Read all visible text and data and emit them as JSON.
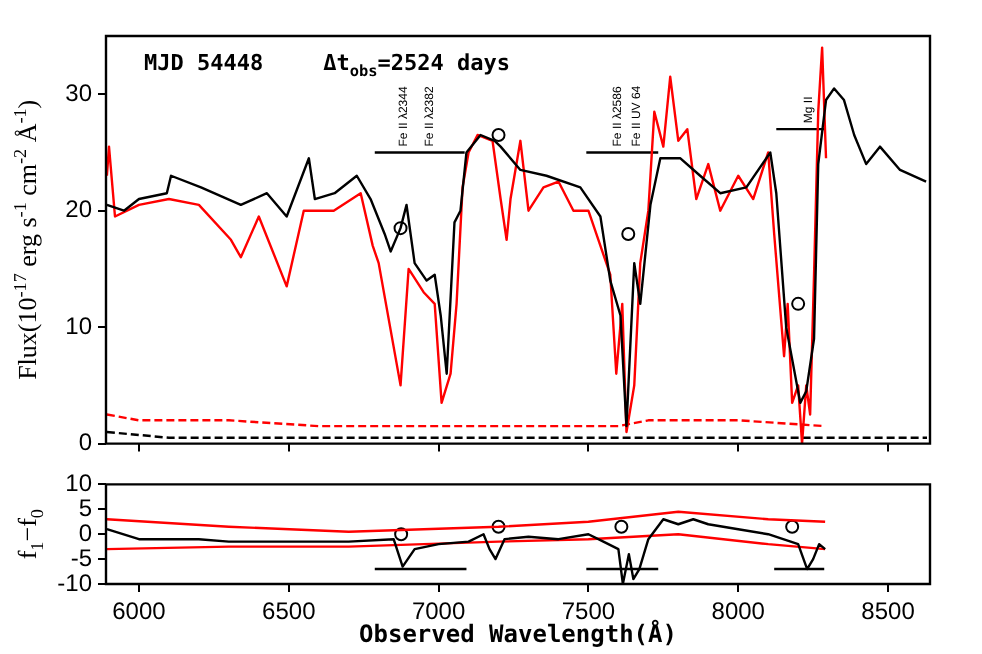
{
  "chart_data": [
    {
      "type": "line",
      "ylabel": "Flux(10$^{-17}$ erg s$^{-1}$ cm$^{-2}$ Å$^{-1}$)",
      "xlim": [
        5890,
        8640
      ],
      "ylim": [
        0,
        35
      ],
      "xticks": [
        {
          "value": 6000,
          "label": null
        },
        {
          "value": 6500,
          "label": null
        },
        {
          "value": 7000,
          "label": null
        },
        {
          "value": 7500,
          "label": null
        },
        {
          "value": 8000,
          "label": null
        },
        {
          "value": 8500,
          "label": null
        }
      ],
      "yticks": [
        0,
        10,
        20,
        30
      ],
      "tick_labels": "y",
      "grid": false,
      "legend": false,
      "annotations": [
        "MJD 54448",
        "Δt$_{obs}$=2524 days",
        {
          "text": "Fe II λ2344",
          "x": 6873,
          "y": 25
        },
        {
          "text": "Fe II λ2382",
          "x": 6960,
          "y": 25
        },
        {
          "text": "Fe II λ2586",
          "x": 7590,
          "y": 25
        },
        {
          "text": "Fe II UV 64",
          "x": 7653,
          "y": 25
        },
        {
          "text": "Mg II",
          "x": 8227,
          "y": 27
        }
      ],
      "series": [
        {
          "color": "#000000",
          "line_style": "solid",
          "x": [
            5893,
            5950,
            6000,
            6093,
            6107,
            6207,
            6340,
            6427,
            6493,
            6567,
            6587,
            6653,
            6727,
            6773,
            6820,
            6840,
            6873,
            6893,
            6920,
            6960,
            6987,
            7007,
            7027,
            7053,
            7073,
            7093,
            7140,
            7187,
            7207,
            7273,
            7360,
            7473,
            7540,
            7573,
            7607,
            7627,
            7653,
            7673,
            7707,
            7740,
            7807,
            7873,
            7940,
            8027,
            8107,
            8127,
            8160,
            8207,
            8227,
            8253,
            8267,
            8293,
            8320,
            8353,
            8387,
            8427,
            8473,
            8540,
            8627
          ],
          "values": [
            20.5,
            20,
            21,
            21.5,
            23,
            22,
            20.5,
            21.5,
            19.5,
            24.5,
            21,
            21.5,
            23,
            21,
            18,
            16.5,
            18.5,
            20.5,
            15.5,
            14,
            14.5,
            11,
            6,
            19,
            20,
            25,
            26.5,
            26,
            25.5,
            23.5,
            23,
            22,
            19.5,
            14,
            11,
            1.5,
            15.5,
            12,
            20.5,
            24.5,
            24.5,
            23,
            21.5,
            22,
            25,
            21.5,
            10,
            3.5,
            4.5,
            9,
            24,
            29.5,
            30.5,
            29.5,
            26.5,
            24,
            25.5,
            23.5,
            22.5
          ]
        },
        {
          "color": "#ff0000",
          "line_style": "solid",
          "x": [
            5893,
            5900,
            5920,
            6000,
            6100,
            6200,
            6307,
            6340,
            6400,
            6493,
            6550,
            6650,
            6740,
            6780,
            6800,
            6873,
            6900,
            6950,
            6987,
            7010,
            7040,
            7060,
            7080,
            7100,
            7130,
            7180,
            7207,
            7227,
            7240,
            7273,
            7300,
            7350,
            7400,
            7450,
            7500,
            7573,
            7593,
            7613,
            7627,
            7653,
            7673,
            7700,
            7720,
            7750,
            7773,
            7800,
            7830,
            7860,
            7900,
            7940,
            8000,
            8050,
            8100,
            8120,
            8153,
            8165,
            8180,
            8200,
            8213,
            8227,
            8240,
            8253,
            8267,
            8280,
            8293
          ],
          "values": [
            23,
            25.5,
            19.5,
            20.5,
            21,
            20.5,
            17.5,
            16,
            19.5,
            13.5,
            20,
            20,
            21.5,
            17,
            15.5,
            5,
            15,
            13,
            12,
            3.5,
            6,
            12,
            22,
            25,
            26.5,
            26,
            21,
            17.5,
            21,
            26,
            20,
            22,
            22.5,
            20,
            20,
            14.5,
            6,
            12,
            1,
            5,
            15.5,
            20,
            28.5,
            25.5,
            31.5,
            26,
            27,
            21,
            24,
            20,
            23,
            21,
            25,
            18,
            7.5,
            12,
            3.5,
            5,
            0,
            5,
            2.5,
            14.5,
            28.5,
            34,
            24.5
          ]
        },
        {
          "color": "#ff0000",
          "line_style": "dashed",
          "x": [
            5893,
            6000,
            6300,
            6600,
            7000,
            7300,
            7600,
            7700,
            8000,
            8290
          ],
          "values": [
            2.5,
            2,
            2,
            1.5,
            1.5,
            1.5,
            1.5,
            2,
            2,
            1.5
          ]
        },
        {
          "color": "#000000",
          "line_style": "dashed",
          "x": [
            5893,
            6100,
            6500,
            7000,
            7500,
            8000,
            8300,
            8630
          ],
          "values": [
            1,
            0.5,
            0.5,
            0.5,
            0.5,
            0.5,
            0.5,
            0.5
          ]
        },
        {
          "color": "#000000",
          "line_style": "solid",
          "x": [
            6787,
            7087
          ],
          "values": [
            25,
            25
          ]
        },
        {
          "color": "#000000",
          "line_style": "solid",
          "x": [
            7493,
            7733
          ],
          "values": [
            25,
            25
          ]
        },
        {
          "color": "#000000",
          "line_style": "solid",
          "x": [
            8127,
            8287
          ],
          "values": [
            27,
            27
          ]
        },
        {
          "type": "scatter",
          "marker": "circle",
          "color": "#000000",
          "x": [
            6873,
            7200,
            7633,
            8200
          ],
          "values": [
            18.5,
            26.5,
            18,
            12
          ]
        }
      ]
    },
    {
      "type": "line",
      "xlabel": "Observed Wavelength(Å)",
      "ylabel": "f$_{1}$−f$_{0}$",
      "xlim": [
        5890,
        8640
      ],
      "ylim": [
        -10,
        10
      ],
      "xticks": [
        6000,
        6500,
        7000,
        7500,
        8000,
        8500
      ],
      "yticks": [
        -10,
        -5,
        0,
        5,
        10
      ],
      "grid": false,
      "legend": false,
      "series": [
        {
          "color": "#000000",
          "line_style": "solid",
          "x": [
            5893,
            6000,
            6200,
            6300,
            6500,
            6700,
            6850,
            6880,
            6920,
            7000,
            7100,
            7150,
            7170,
            7190,
            7220,
            7300,
            7400,
            7500,
            7550,
            7600,
            7615,
            7635,
            7650,
            7670,
            7700,
            7750,
            7800,
            7850,
            7900,
            8000,
            8100,
            8150,
            8200,
            8230,
            8250,
            8270,
            8290
          ],
          "values": [
            1,
            -1,
            -1,
            -1.5,
            -1.5,
            -1.5,
            -1,
            -6.5,
            -3,
            -2,
            -1.5,
            0,
            -3,
            -5,
            -1,
            -0.5,
            -1,
            0,
            -1.5,
            -3,
            -10,
            -4,
            -9,
            -7,
            -1,
            3,
            2,
            3,
            2,
            1,
            0,
            -1,
            -2,
            -7,
            -5,
            -2,
            -3
          ]
        },
        {
          "color": "#ff0000",
          "line_style": "solid",
          "x": [
            5893,
            6300,
            6700,
            7200,
            7500,
            7800,
            8100,
            8290
          ],
          "values": [
            3,
            1.5,
            0.5,
            1.5,
            2.5,
            4.5,
            3,
            2.5
          ]
        },
        {
          "color": "#ff0000",
          "line_style": "solid",
          "x": [
            5893,
            6300,
            6700,
            7200,
            7500,
            7800,
            8100,
            8290
          ],
          "values": [
            -3,
            -2.5,
            -2.5,
            -1.5,
            -1,
            0,
            -2,
            -3
          ]
        },
        {
          "color": "#000000",
          "line_style": "solid",
          "x": [
            6787,
            7093
          ],
          "values": [
            -7,
            -7
          ]
        },
        {
          "color": "#000000",
          "line_style": "solid",
          "x": [
            7493,
            7733
          ],
          "values": [
            -7,
            -7
          ]
        },
        {
          "color": "#000000",
          "line_style": "solid",
          "x": [
            8120,
            8287
          ],
          "values": [
            -7,
            -7
          ]
        },
        {
          "type": "scatter",
          "marker": "circle",
          "color": "#000000",
          "x": [
            6875,
            7200,
            7610,
            8180
          ],
          "values": [
            0,
            1.5,
            1.5,
            1.5
          ]
        }
      ]
    }
  ]
}
